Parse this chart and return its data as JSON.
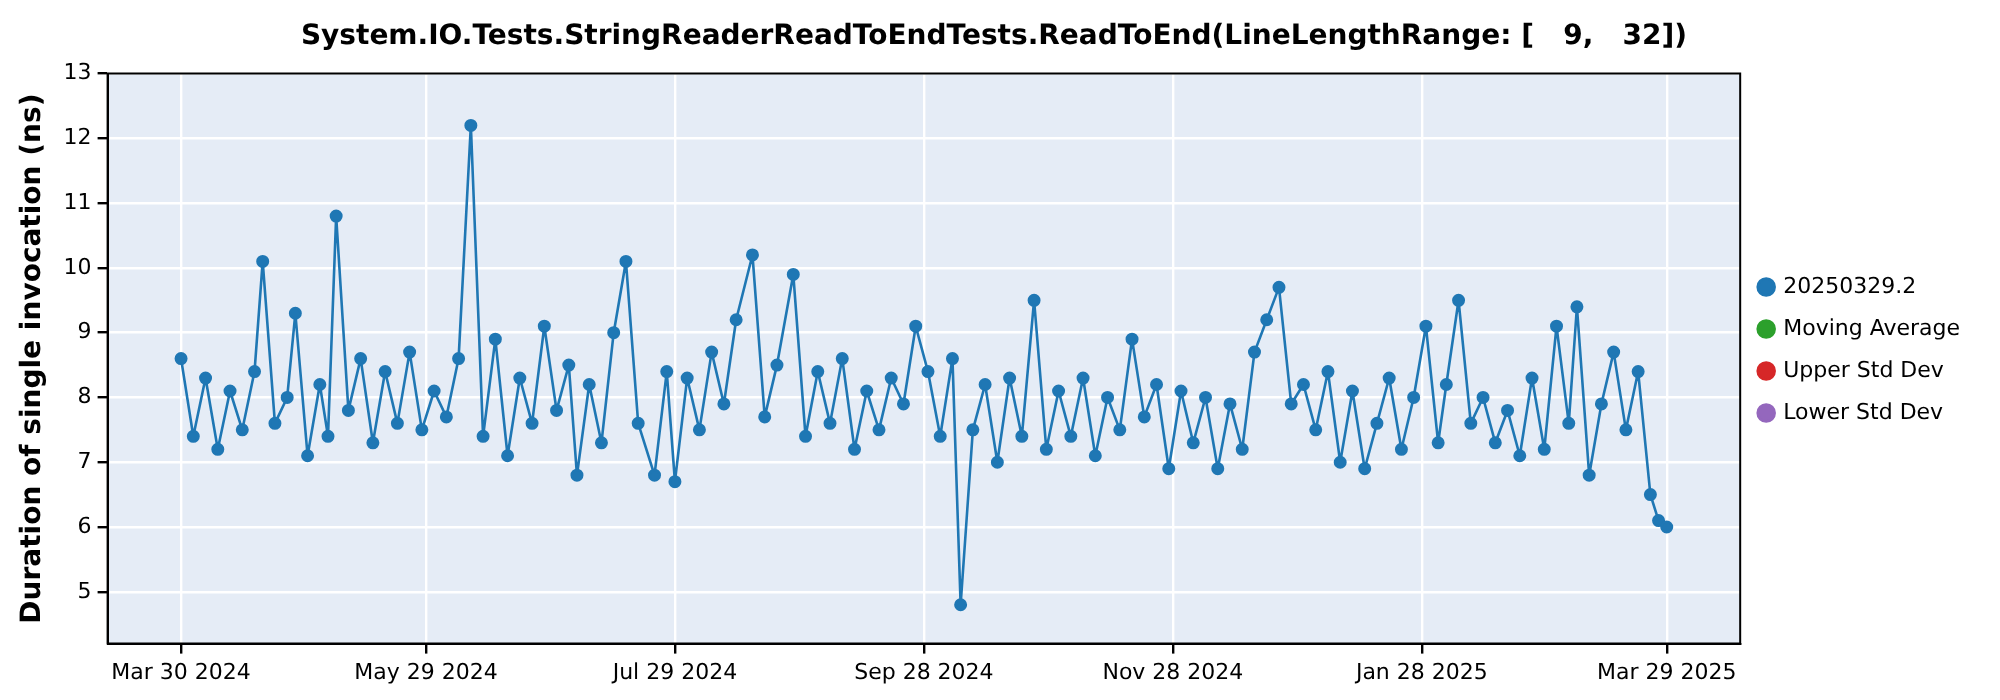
{
  "chart_data": {
    "type": "line",
    "title": "System.IO.Tests.StringReaderReadToEndTests.ReadToEnd(LineLengthRange: [   9,   32])",
    "ylabel": "Duration of single invocation (ns)",
    "x": [
      "2024-03-30",
      "2024-04-02",
      "2024-04-05",
      "2024-04-08",
      "2024-04-11",
      "2024-04-14",
      "2024-04-17",
      "2024-04-19",
      "2024-04-22",
      "2024-04-25",
      "2024-04-27",
      "2024-04-30",
      "2024-05-03",
      "2024-05-05",
      "2024-05-07",
      "2024-05-10",
      "2024-05-13",
      "2024-05-16",
      "2024-05-19",
      "2024-05-22",
      "2024-05-25",
      "2024-05-28",
      "2024-05-31",
      "2024-06-03",
      "2024-06-06",
      "2024-06-09",
      "2024-06-12",
      "2024-06-15",
      "2024-06-18",
      "2024-06-21",
      "2024-06-24",
      "2024-06-27",
      "2024-06-30",
      "2024-07-03",
      "2024-07-05",
      "2024-07-08",
      "2024-07-11",
      "2024-07-14",
      "2024-07-17",
      "2024-07-20",
      "2024-07-24",
      "2024-07-27",
      "2024-07-29",
      "2024-08-01",
      "2024-08-04",
      "2024-08-07",
      "2024-08-10",
      "2024-08-13",
      "2024-08-17",
      "2024-08-20",
      "2024-08-23",
      "2024-08-27",
      "2024-08-30",
      "2024-09-02",
      "2024-09-05",
      "2024-09-08",
      "2024-09-11",
      "2024-09-14",
      "2024-09-17",
      "2024-09-20",
      "2024-09-23",
      "2024-09-26",
      "2024-09-29",
      "2024-10-02",
      "2024-10-05",
      "2024-10-07",
      "2024-10-10",
      "2024-10-13",
      "2024-10-16",
      "2024-10-19",
      "2024-10-22",
      "2024-10-25",
      "2024-10-28",
      "2024-10-31",
      "2024-11-03",
      "2024-11-06",
      "2024-11-09",
      "2024-11-12",
      "2024-11-15",
      "2024-11-18",
      "2024-11-21",
      "2024-11-24",
      "2024-11-27",
      "2024-11-30",
      "2024-12-03",
      "2024-12-06",
      "2024-12-09",
      "2024-12-12",
      "2024-12-15",
      "2024-12-18",
      "2024-12-21",
      "2024-12-24",
      "2024-12-27",
      "2024-12-30",
      "2025-01-02",
      "2025-01-05",
      "2025-01-08",
      "2025-01-11",
      "2025-01-14",
      "2025-01-17",
      "2025-01-20",
      "2025-01-23",
      "2025-01-26",
      "2025-01-29",
      "2025-02-01",
      "2025-02-03",
      "2025-02-06",
      "2025-02-09",
      "2025-02-12",
      "2025-02-15",
      "2025-02-18",
      "2025-02-21",
      "2025-02-24",
      "2025-02-27",
      "2025-03-02",
      "2025-03-05",
      "2025-03-07",
      "2025-03-10",
      "2025-03-13",
      "2025-03-16",
      "2025-03-19",
      "2025-03-22",
      "2025-03-25",
      "2025-03-27",
      "2025-03-29"
    ],
    "series": [
      {
        "name": "20250329.2",
        "color": "#1f77b4",
        "values": [
          8.6,
          7.4,
          8.3,
          7.2,
          8.1,
          7.5,
          8.4,
          10.1,
          7.6,
          8.0,
          9.3,
          7.1,
          8.2,
          7.4,
          10.8,
          7.8,
          8.6,
          7.3,
          8.4,
          7.6,
          8.7,
          7.5,
          8.1,
          7.7,
          8.6,
          12.2,
          7.4,
          8.9,
          7.1,
          8.3,
          7.6,
          9.1,
          7.8,
          8.5,
          6.8,
          8.2,
          7.3,
          9.0,
          10.1,
          7.6,
          6.8,
          8.4,
          6.7,
          8.3,
          7.5,
          8.7,
          7.9,
          9.2,
          10.2,
          7.7,
          8.5,
          9.9,
          7.4,
          8.4,
          7.6,
          8.6,
          7.2,
          8.1,
          7.5,
          8.3,
          7.9,
          9.1,
          8.4,
          7.4,
          8.6,
          4.8,
          7.5,
          8.2,
          7.0,
          8.3,
          7.4,
          9.5,
          7.2,
          8.1,
          7.4,
          8.3,
          7.1,
          8.0,
          7.5,
          8.9,
          7.7,
          8.2,
          6.9,
          8.1,
          7.3,
          8.0,
          6.9,
          7.9,
          7.2,
          8.7,
          9.2,
          9.7,
          7.9,
          8.2,
          7.5,
          8.4,
          7.0,
          8.1,
          6.9,
          7.6,
          8.3,
          7.2,
          8.0,
          9.1,
          7.3,
          8.2,
          9.5,
          7.6,
          8.0,
          7.3,
          7.8,
          7.1,
          8.3,
          7.2,
          9.1,
          7.6,
          9.4,
          6.8,
          7.9,
          8.7,
          7.5,
          8.4,
          6.5,
          6.1,
          6.0
        ]
      },
      {
        "name": "Moving Average",
        "color": "#2ca02c",
        "values": [
          null,
          null,
          null,
          null,
          null,
          null,
          null,
          null,
          null,
          null,
          null,
          null,
          null,
          null,
          null,
          null,
          null,
          null,
          null,
          null,
          null,
          null,
          null,
          null,
          null,
          null,
          null,
          null,
          null,
          null,
          null,
          null,
          null,
          null,
          null,
          null,
          null,
          null,
          null,
          null,
          null,
          null,
          null,
          null,
          null,
          null,
          null,
          null,
          null,
          null,
          null,
          null,
          null,
          null,
          null,
          null,
          null,
          null,
          null,
          null,
          null,
          null,
          null,
          null,
          null,
          null,
          null,
          null,
          null,
          null,
          null,
          null,
          null,
          null,
          null,
          null,
          null,
          null,
          null,
          null,
          null,
          null,
          null,
          null,
          null,
          null,
          null,
          null,
          null,
          null,
          null,
          null,
          null,
          null,
          null,
          null,
          null,
          null,
          null,
          null,
          null,
          null,
          null,
          null,
          null,
          null,
          null,
          null,
          null,
          null,
          null,
          null,
          null,
          null,
          null,
          null,
          null,
          null,
          null,
          null,
          null,
          null,
          null,
          null,
          null
        ]
      },
      {
        "name": "Upper Std Dev",
        "color": "#d62728",
        "values": [
          null,
          null,
          null,
          null,
          null,
          null,
          null,
          null,
          null,
          null,
          null,
          null,
          null,
          null,
          null,
          null,
          null,
          null,
          null,
          null,
          null,
          null,
          null,
          null,
          null,
          null,
          null,
          null,
          null,
          null,
          null,
          null,
          null,
          null,
          null,
          null,
          null,
          null,
          null,
          null,
          null,
          null,
          null,
          null,
          null,
          null,
          null,
          null,
          null,
          null,
          null,
          null,
          null,
          null,
          null,
          null,
          null,
          null,
          null,
          null,
          null,
          null,
          null,
          null,
          null,
          null,
          null,
          null,
          null,
          null,
          null,
          null,
          null,
          null,
          null,
          null,
          null,
          null,
          null,
          null,
          null,
          null,
          null,
          null,
          null,
          null,
          null,
          null,
          null,
          null,
          null,
          null,
          null,
          null,
          null,
          null,
          null,
          null,
          null,
          null,
          null,
          null,
          null,
          null,
          null,
          null,
          null,
          null,
          null,
          null,
          null,
          null,
          null,
          null,
          null,
          null,
          null,
          null,
          null,
          null,
          null,
          null,
          null,
          null,
          null
        ]
      },
      {
        "name": "Lower Std Dev",
        "color": "#9467bd",
        "values": [
          null,
          null,
          null,
          null,
          null,
          null,
          null,
          null,
          null,
          null,
          null,
          null,
          null,
          null,
          null,
          null,
          null,
          null,
          null,
          null,
          null,
          null,
          null,
          null,
          null,
          null,
          null,
          null,
          null,
          null,
          null,
          null,
          null,
          null,
          null,
          null,
          null,
          null,
          null,
          null,
          null,
          null,
          null,
          null,
          null,
          null,
          null,
          null,
          null,
          null,
          null,
          null,
          null,
          null,
          null,
          null,
          null,
          null,
          null,
          null,
          null,
          null,
          null,
          null,
          null,
          null,
          null,
          null,
          null,
          null,
          null,
          null,
          null,
          null,
          null,
          null,
          null,
          null,
          null,
          null,
          null,
          null,
          null,
          null,
          null,
          null,
          null,
          null,
          null,
          null,
          null,
          null,
          null,
          null,
          null,
          null,
          null,
          null,
          null,
          null,
          null,
          null,
          null,
          null,
          null,
          null,
          null,
          null,
          null,
          null,
          null,
          null,
          null,
          null,
          null,
          null,
          null,
          null,
          null,
          null,
          null,
          null,
          null,
          null,
          null
        ]
      }
    ],
    "xlim": [
      "2024-03-12",
      "2025-04-16"
    ],
    "xticks": [
      {
        "value": "2024-03-30",
        "label": "Mar 30 2024"
      },
      {
        "value": "2024-05-29",
        "label": "May 29 2024"
      },
      {
        "value": "2024-07-29",
        "label": "Jul 29 2024"
      },
      {
        "value": "2024-09-28",
        "label": "Sep 28 2024"
      },
      {
        "value": "2024-11-28",
        "label": "Nov 28 2024"
      },
      {
        "value": "2025-01-28",
        "label": "Jan 28 2025"
      },
      {
        "value": "2025-03-29",
        "label": "Mar 29 2025"
      }
    ],
    "ylim": [
      4.2,
      13
    ],
    "yticks": [
      5,
      6,
      7,
      8,
      9,
      10,
      11,
      12,
      13
    ],
    "grid": true,
    "legend": "right",
    "marker": "circle",
    "line_style": "solid"
  }
}
